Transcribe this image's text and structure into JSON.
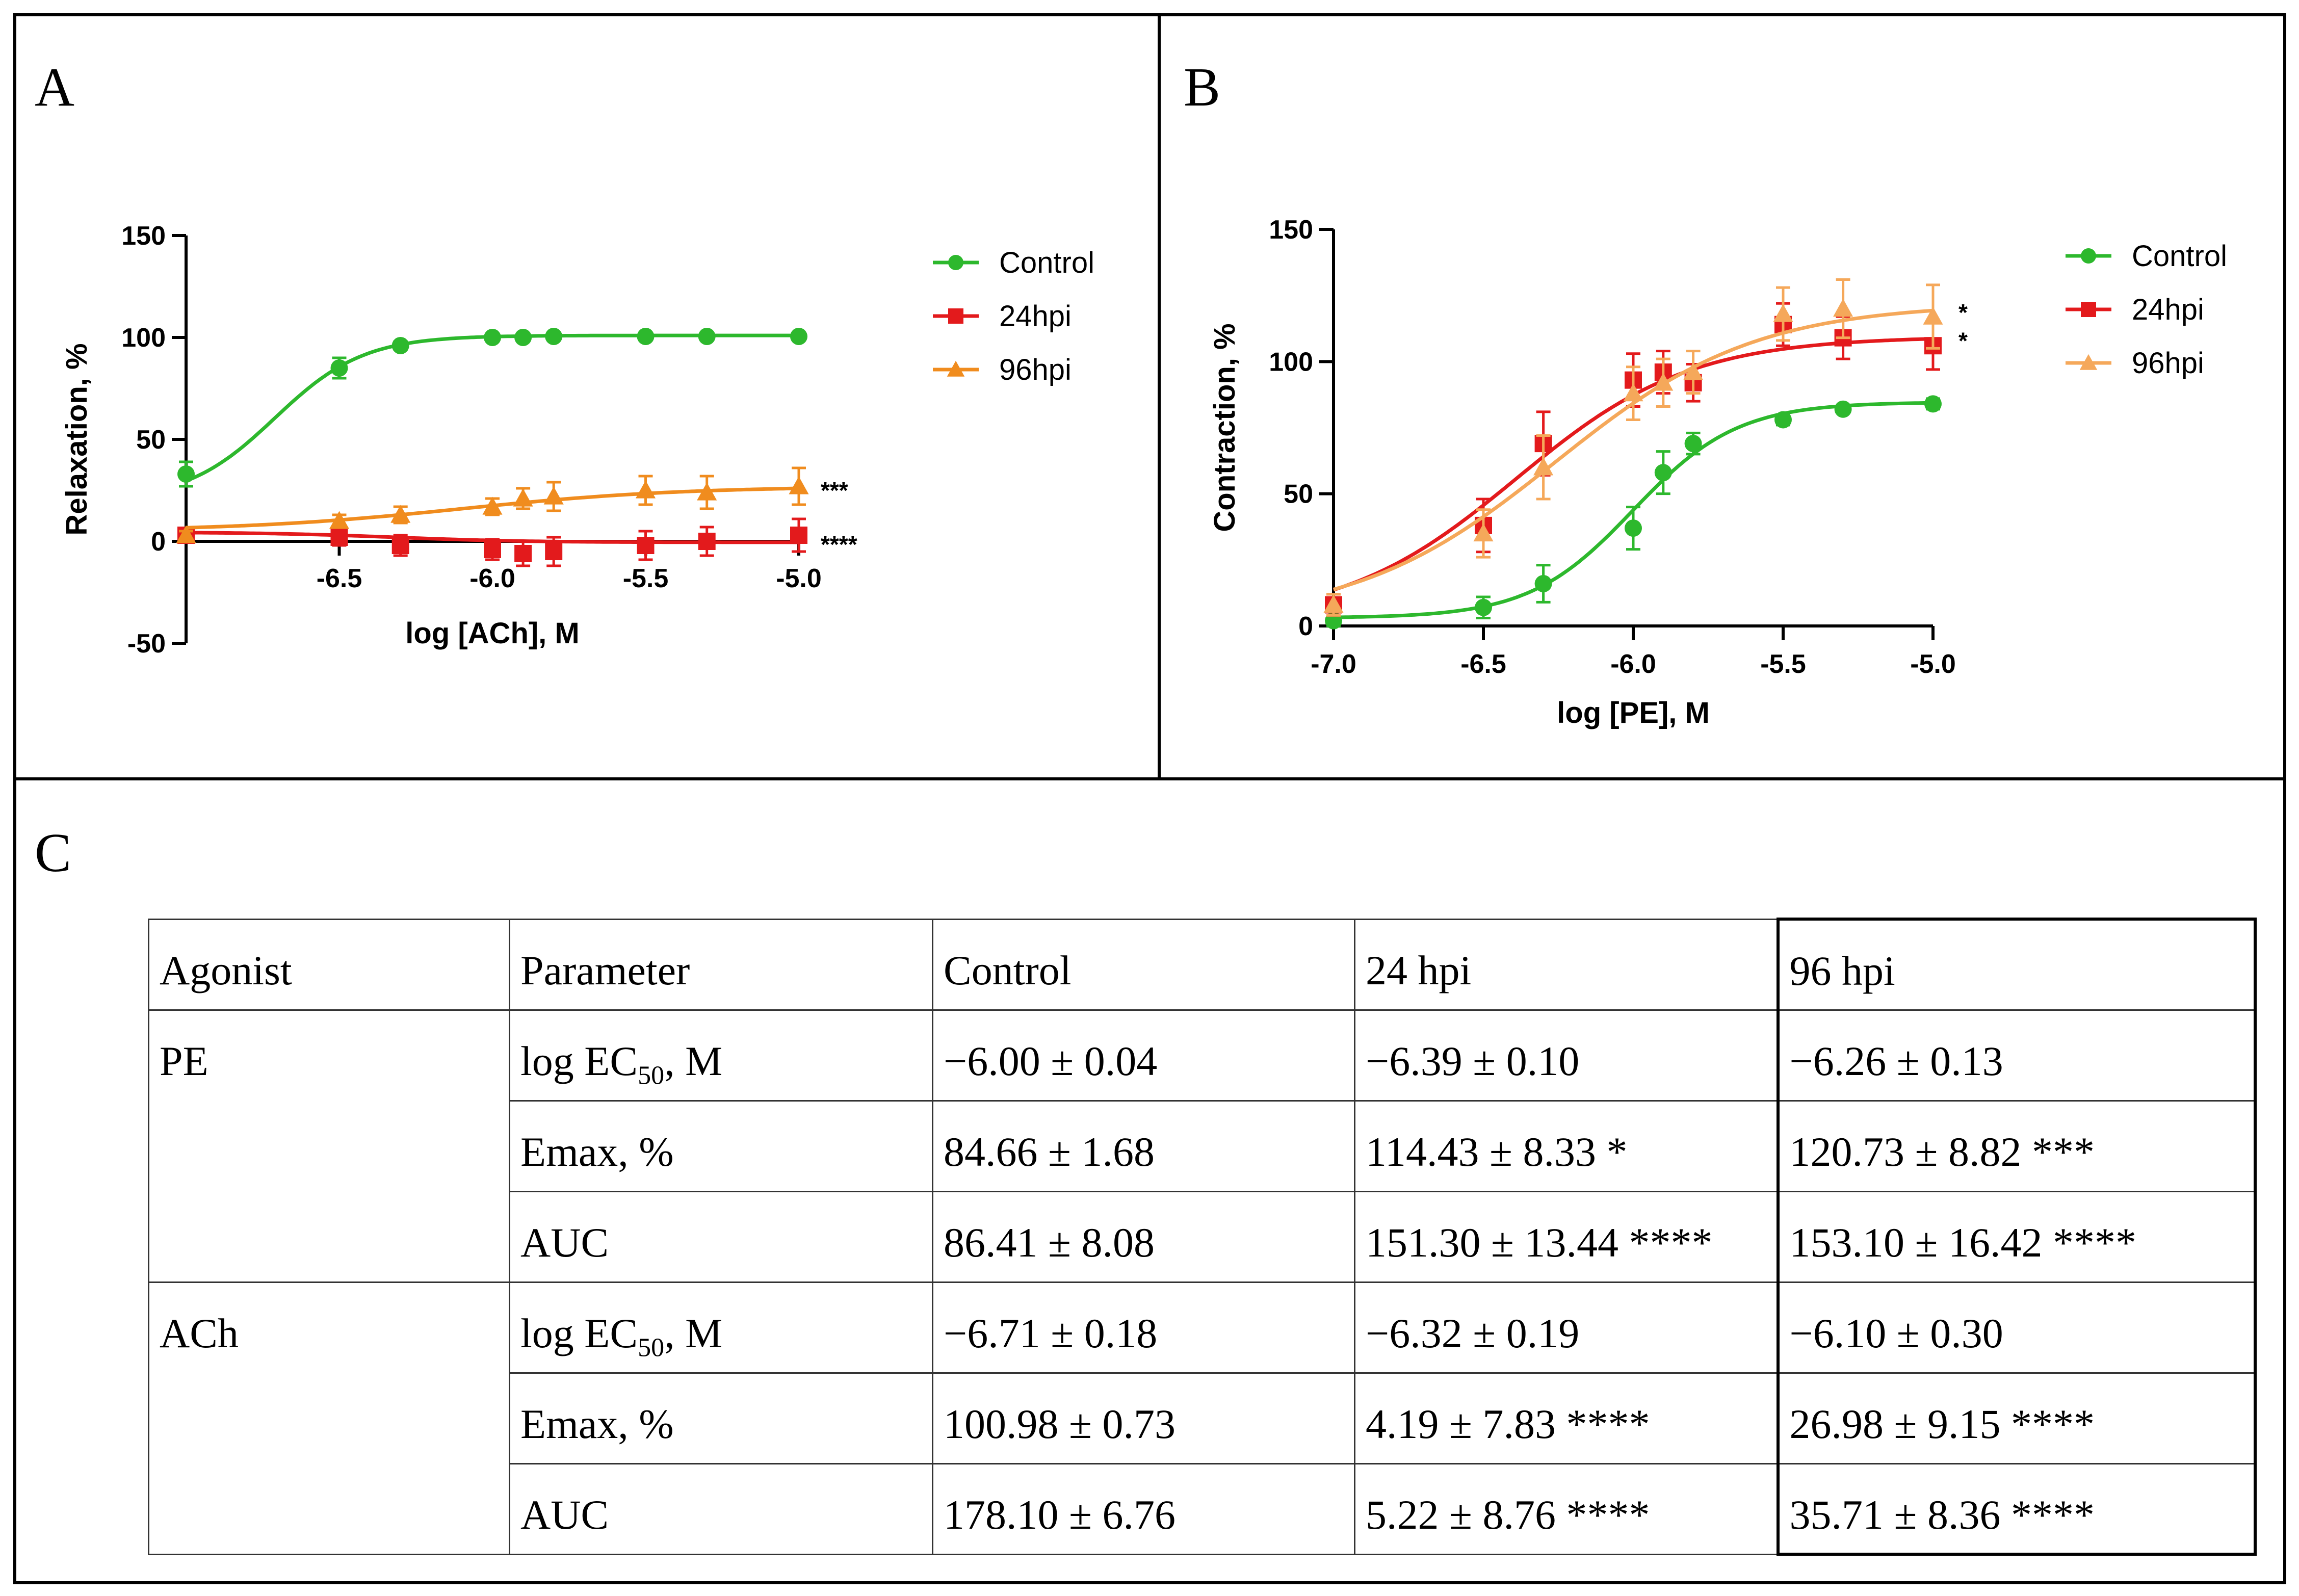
{
  "panels": {
    "a": "A",
    "b": "B",
    "c": "C"
  },
  "colors": {
    "control": "#2db82d",
    "hpi24": "#e31a1c",
    "hpi96_a": "#f08c1e",
    "hpi96_b": "#f5a85a"
  },
  "chart_data": [
    {
      "type": "line",
      "panel": "A",
      "xlabel": "log [ACh], M",
      "ylabel": "Relaxation, %",
      "xlim": [
        -7.0,
        -5.0
      ],
      "ylim": [
        -50,
        150
      ],
      "xticks": [
        -6.5,
        -6.0,
        -5.5,
        -5.0
      ],
      "xtick_labels": [
        "-6.5",
        "-6.0",
        "-5.5",
        "-5.0"
      ],
      "yticks": [
        150,
        100,
        50,
        0,
        -50
      ],
      "ytick_labels": [
        "150",
        "100",
        "50",
        "0",
        "-50"
      ],
      "legend": [
        "Control",
        "24hpi",
        "96hpi"
      ],
      "legend_position": "top-right",
      "series": [
        {
          "name": "Control",
          "marker": "circle",
          "color": "#2db82d",
          "x": [
            -7.0,
            -6.5,
            -6.3,
            -6.0,
            -5.9,
            -5.8,
            -5.5,
            -5.3,
            -5.0
          ],
          "y": [
            33,
            85,
            96,
            100,
            100,
            100.5,
            100.5,
            100.5,
            100.5
          ],
          "err": [
            6,
            5,
            2,
            1,
            1,
            1,
            1,
            1,
            1
          ],
          "fit": {
            "bottom": 20,
            "top": 100.98,
            "logEC50": -6.71,
            "hill": 3
          }
        },
        {
          "name": "24hpi",
          "marker": "square",
          "color": "#e31a1c",
          "x": [
            -7.0,
            -6.5,
            -6.3,
            -6.0,
            -5.9,
            -5.8,
            -5.5,
            -5.3,
            -5.0
          ],
          "y": [
            3,
            2,
            -2,
            -4,
            -6,
            -5,
            -2,
            0,
            3
          ],
          "err": [
            3,
            4,
            5,
            5,
            6,
            7,
            7,
            7,
            8
          ],
          "fit": {
            "bottom": 4.5,
            "top": -0.5,
            "logEC50": -6.32,
            "hill": 2
          }
        },
        {
          "name": "96hpi",
          "marker": "triangle",
          "color": "#f08c1e",
          "x": [
            -7.0,
            -6.5,
            -6.3,
            -6.0,
            -5.9,
            -5.8,
            -5.5,
            -5.3,
            -5.0
          ],
          "y": [
            3,
            10,
            13,
            17,
            21,
            22,
            25,
            24,
            27
          ],
          "err": [
            2,
            3,
            4,
            4,
            5,
            7,
            7,
            8,
            9
          ],
          "fit": {
            "bottom": 5,
            "top": 26.98,
            "logEC50": -6.1,
            "hill": 1.2
          }
        }
      ],
      "annotations": [
        {
          "series": "96hpi",
          "text": "***"
        },
        {
          "series": "24hpi",
          "text": "****"
        }
      ]
    },
    {
      "type": "line",
      "panel": "B",
      "xlabel": "log [PE], M",
      "ylabel": "Contraction, %",
      "xlim": [
        -7.0,
        -5.0
      ],
      "ylim": [
        0,
        150
      ],
      "xticks": [
        -7.0,
        -6.5,
        -6.0,
        -5.5,
        -5.0
      ],
      "xtick_labels": [
        "-7.0",
        "-6.5",
        "-6.0",
        "-5.5",
        "-5.0"
      ],
      "yticks": [
        150,
        100,
        50,
        0
      ],
      "ytick_labels": [
        "150",
        "100",
        "50",
        "0"
      ],
      "legend": [
        "Control",
        "24hpi",
        "96hpi"
      ],
      "legend_position": "top-right",
      "series": [
        {
          "name": "Control",
          "marker": "circle",
          "color": "#2db82d",
          "x": [
            -7.0,
            -6.5,
            -6.3,
            -6.0,
            -5.9,
            -5.8,
            -5.5,
            -5.3,
            -5.0
          ],
          "y": [
            2,
            7,
            16,
            37,
            58,
            69,
            78,
            82,
            84
          ],
          "err": [
            2,
            4,
            7,
            8,
            8,
            4,
            2,
            1,
            2
          ],
          "fit": {
            "bottom": 3,
            "top": 84.66,
            "logEC50": -6.0,
            "hill": 2.5
          }
        },
        {
          "name": "24hpi",
          "marker": "square",
          "color": "#e31a1c",
          "x": [
            -7.0,
            -6.5,
            -6.3,
            -6.0,
            -5.9,
            -5.8,
            -5.5,
            -5.3,
            -5.0
          ],
          "y": [
            8,
            38,
            69,
            93,
            96,
            92,
            114,
            109,
            106
          ],
          "err": [
            4,
            10,
            12,
            10,
            8,
            7,
            8,
            8,
            9
          ],
          "fit": {
            "bottom": 2,
            "top": 109.5,
            "logEC50": -6.39,
            "hill": 1.5
          }
        },
        {
          "name": "96hpi",
          "marker": "triangle",
          "color": "#f5a85a",
          "x": [
            -7.0,
            -6.5,
            -6.3,
            -6.0,
            -5.9,
            -5.8,
            -5.5,
            -5.3,
            -5.0
          ],
          "y": [
            8,
            35,
            60,
            88,
            92,
            96,
            118,
            120,
            117
          ],
          "err": [
            4,
            9,
            12,
            10,
            9,
            8,
            10,
            11,
            12
          ],
          "fit": {
            "bottom": 2,
            "top": 122,
            "logEC50": -6.26,
            "hill": 1.3
          }
        }
      ],
      "annotations": [
        {
          "series": "96hpi",
          "text": "*"
        },
        {
          "series": "24hpi",
          "text": "*"
        }
      ]
    }
  ],
  "table": {
    "headers": [
      "Agonist",
      "Parameter",
      "Control",
      "24 hpi",
      "96 hpi"
    ],
    "groups": [
      {
        "agonist": "PE",
        "rows": [
          {
            "param": "log EC",
            "sub": "50",
            "param_tail": ", M",
            "cells": [
              "−6.00 ± 0.04",
              "−6.39 ± 0.10",
              "−6.26 ± 0.13"
            ]
          },
          {
            "param": "Emax, %",
            "sub": "",
            "param_tail": "",
            "cells": [
              "84.66 ± 1.68",
              "114.43 ± 8.33 *",
              "120.73 ± 8.82 ***"
            ]
          },
          {
            "param": "AUC",
            "sub": "",
            "param_tail": "",
            "cells": [
              "86.41 ± 8.08",
              "151.30 ± 13.44 ****",
              "153.10 ± 16.42 ****"
            ]
          }
        ]
      },
      {
        "agonist": "ACh",
        "rows": [
          {
            "param": "log EC",
            "sub": "50",
            "param_tail": ", M",
            "cells": [
              "−6.71 ± 0.18",
              "−6.32 ± 0.19",
              "−6.10 ± 0.30"
            ]
          },
          {
            "param": "Emax, %",
            "sub": "",
            "param_tail": "",
            "cells": [
              "100.98 ± 0.73",
              "4.19 ± 7.83 ****",
              "26.98 ± 9.15 ****"
            ]
          },
          {
            "param": "AUC",
            "sub": "",
            "param_tail": "",
            "cells": [
              "178.10 ± 6.76",
              "5.22 ± 8.76 ****",
              "35.71 ± 8.36 ****"
            ]
          }
        ]
      }
    ]
  }
}
